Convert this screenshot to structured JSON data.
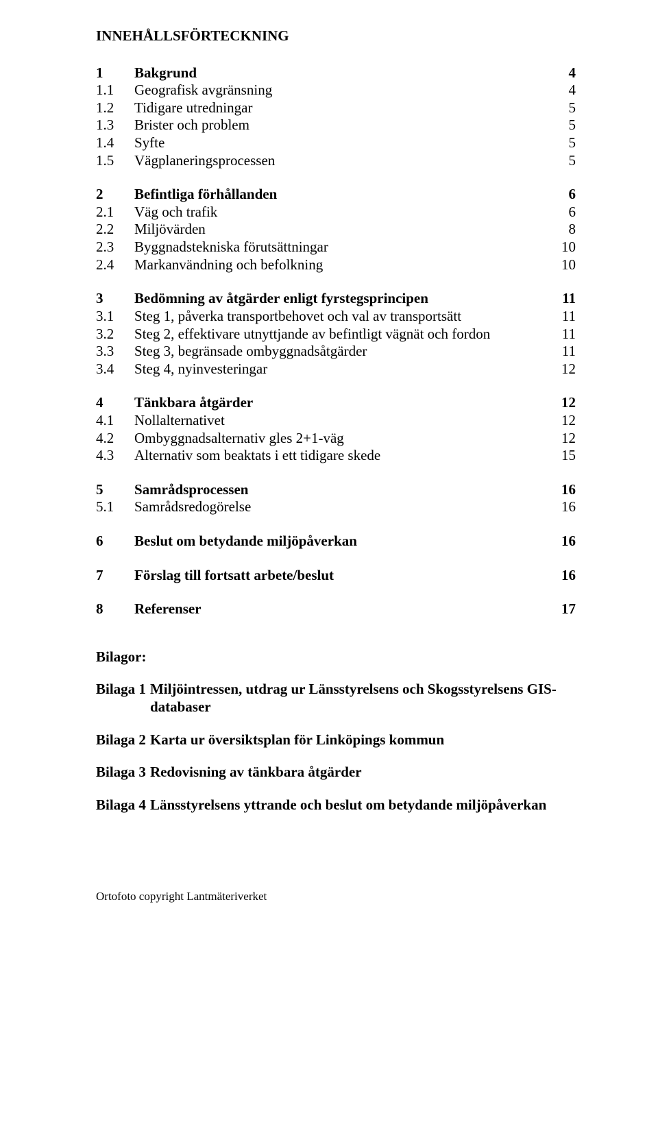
{
  "mainTitle": "INNEHÅLLSFÖRTECKNING",
  "toc": [
    {
      "num": "1",
      "text": "Bakgrund",
      "page": "4",
      "bold": true
    },
    {
      "num": "1.1",
      "text": "Geografisk avgränsning",
      "page": "4",
      "bold": false
    },
    {
      "num": "1.2",
      "text": "Tidigare utredningar",
      "page": "5",
      "bold": false
    },
    {
      "num": "1.3",
      "text": "Brister och problem",
      "page": "5",
      "bold": false
    },
    {
      "num": "1.4",
      "text": "Syfte",
      "page": "5",
      "bold": false
    },
    {
      "num": "1.5",
      "text": "Vägplaneringsprocessen",
      "page": "5",
      "bold": false
    },
    {
      "gap": true
    },
    {
      "num": "2",
      "text": "Befintliga förhållanden",
      "page": "6",
      "bold": true
    },
    {
      "num": "2.1",
      "text": "Väg och trafik",
      "page": "6",
      "bold": false
    },
    {
      "num": "2.2",
      "text": "Miljövärden",
      "page": "8",
      "bold": false
    },
    {
      "num": "2.3",
      "text": "Byggnadstekniska förutsättningar",
      "page": "10",
      "bold": false
    },
    {
      "num": "2.4",
      "text": "Markanvändning och befolkning",
      "page": "10",
      "bold": false
    },
    {
      "gap": true
    },
    {
      "num": "3",
      "text": "Bedömning av åtgärder enligt fyrstegsprincipen",
      "page": "11",
      "bold": true
    },
    {
      "num": "3.1",
      "text": "Steg 1, påverka transportbehovet och val av transportsätt",
      "page": "11",
      "bold": false
    },
    {
      "num": "3.2",
      "text": "Steg 2, effektivare utnyttjande av befintligt vägnät och fordon",
      "page": "11",
      "bold": false
    },
    {
      "num": "3.3",
      "text": "Steg 3, begränsade ombyggnadsåtgärder",
      "page": "11",
      "bold": false
    },
    {
      "num": "3.4",
      "text": "Steg 4, nyinvesteringar",
      "page": "12",
      "bold": false
    },
    {
      "gap": true
    },
    {
      "num": "4",
      "text": "Tänkbara åtgärder",
      "page": "12",
      "bold": true
    },
    {
      "num": "4.1",
      "text": "Nollalternativet",
      "page": "12",
      "bold": false
    },
    {
      "num": "4.2",
      "text": "Ombyggnadsalternativ gles 2+1-väg",
      "page": "12",
      "bold": false
    },
    {
      "num": "4.3",
      "text": "Alternativ som beaktats i ett tidigare skede",
      "page": "15",
      "bold": false
    },
    {
      "gap": true
    },
    {
      "num": "5",
      "text": "Samrådsprocessen",
      "page": "16",
      "bold": true
    },
    {
      "num": "5.1",
      "text": "Samrådsredogörelse",
      "page": "16",
      "bold": false
    },
    {
      "gap": true
    },
    {
      "num": "6",
      "text": "Beslut om betydande miljöpåverkan",
      "page": "16",
      "bold": true
    },
    {
      "gap": true
    },
    {
      "num": "7",
      "text": "Förslag till fortsatt arbete/beslut",
      "page": "16",
      "bold": true
    },
    {
      "gap": true
    },
    {
      "num": "8",
      "text": "Referenser",
      "page": "17",
      "bold": true
    }
  ],
  "bilagorTitle": "Bilagor:",
  "bilagor": [
    {
      "label": "Bilaga 1",
      "first": "Miljöintressen, utdrag ur Länsstyrelsens och Skogsstyrelsens GIS-",
      "cont": "databaser"
    },
    {
      "label": "Bilaga 2",
      "first": "Karta ur översiktsplan för Linköpings kommun"
    },
    {
      "label": "Bilaga 3",
      "first": "Redovisning av tänkbara åtgärder"
    },
    {
      "label": "Bilaga 4",
      "first": "Länsstyrelsens yttrande och beslut om betydande miljöpåverkan"
    }
  ],
  "footer": "Ortofoto copyright Lantmäteriverket"
}
